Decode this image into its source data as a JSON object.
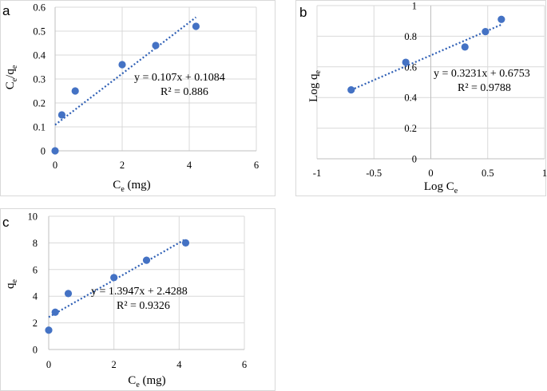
{
  "colors": {
    "marker": "#4472c4",
    "trend": "#2e5fb5"
  },
  "chart_data": [
    {
      "id": "a",
      "type": "scatter",
      "panel_label": "a",
      "title": "",
      "xlabel": {
        "main": "C",
        "sub": "e",
        "suffix": " (mg)"
      },
      "ylabel": {
        "main1": "C",
        "sub1": "e",
        "mid": "/q",
        "sub2": "e"
      },
      "xlim": [
        0,
        6
      ],
      "ylim": [
        0,
        0.6
      ],
      "xticks": [
        "0",
        "2",
        "4",
        "6"
      ],
      "yticks": [
        "0",
        "0.1",
        "0.2",
        "0.3",
        "0.4",
        "0.5",
        "0.6"
      ],
      "grid": true,
      "points": [
        [
          0,
          0.0
        ],
        [
          0.2,
          0.15
        ],
        [
          0.6,
          0.25
        ],
        [
          2,
          0.36
        ],
        [
          3,
          0.44
        ],
        [
          4.2,
          0.52
        ]
      ],
      "trendline": {
        "slope": 0.107,
        "intercept": 0.1084,
        "x_range": [
          0,
          4.2
        ]
      },
      "equation": "y = 0.107x + 0.1084",
      "r2": "R² = 0.886"
    },
    {
      "id": "b",
      "type": "scatter",
      "panel_label": "b",
      "title": "",
      "xlabel": {
        "main": "Log C",
        "sub": "e",
        "suffix": ""
      },
      "ylabel": {
        "main1": "Log q",
        "sub1": "e",
        "mid": "",
        "sub2": ""
      },
      "xlim": [
        -1,
        1
      ],
      "ylim": [
        0,
        1
      ],
      "xticks": [
        "-1",
        "-0.5",
        "0",
        "0.5",
        "1"
      ],
      "yticks": [
        "0",
        "0.2",
        "0.4",
        "0.6",
        "0.8",
        "1"
      ],
      "grid": true,
      "points": [
        [
          -0.7,
          0.45
        ],
        [
          -0.22,
          0.63
        ],
        [
          0.3,
          0.73
        ],
        [
          0.48,
          0.83
        ],
        [
          0.62,
          0.91
        ]
      ],
      "trendline": {
        "slope": 0.3231,
        "intercept": 0.6753,
        "x_range": [
          -0.7,
          0.62
        ]
      },
      "equation": "y = 0.3231x + 0.6753",
      "r2": "R² = 0.9788"
    },
    {
      "id": "c",
      "type": "scatter",
      "panel_label": "c",
      "title": "",
      "xlabel": {
        "main": "C",
        "sub": "e",
        "suffix": " (mg)"
      },
      "ylabel": {
        "main1": "q",
        "sub1": "e",
        "mid": "",
        "sub2": ""
      },
      "xlim": [
        0,
        6
      ],
      "ylim": [
        0,
        10
      ],
      "xticks": [
        "0",
        "2",
        "4",
        "6"
      ],
      "yticks": [
        "0",
        "2",
        "4",
        "6",
        "8",
        "10"
      ],
      "grid": true,
      "points": [
        [
          0,
          1.45
        ],
        [
          0.2,
          2.8
        ],
        [
          0.6,
          4.2
        ],
        [
          2,
          5.4
        ],
        [
          3,
          6.7
        ],
        [
          4.2,
          8.0
        ]
      ],
      "trendline": {
        "slope": 1.3947,
        "intercept": 2.4288,
        "x_range": [
          0,
          4.2
        ]
      },
      "equation": "y = 1.3947x + 2.4288",
      "r2": "R² = 0.9326"
    }
  ]
}
